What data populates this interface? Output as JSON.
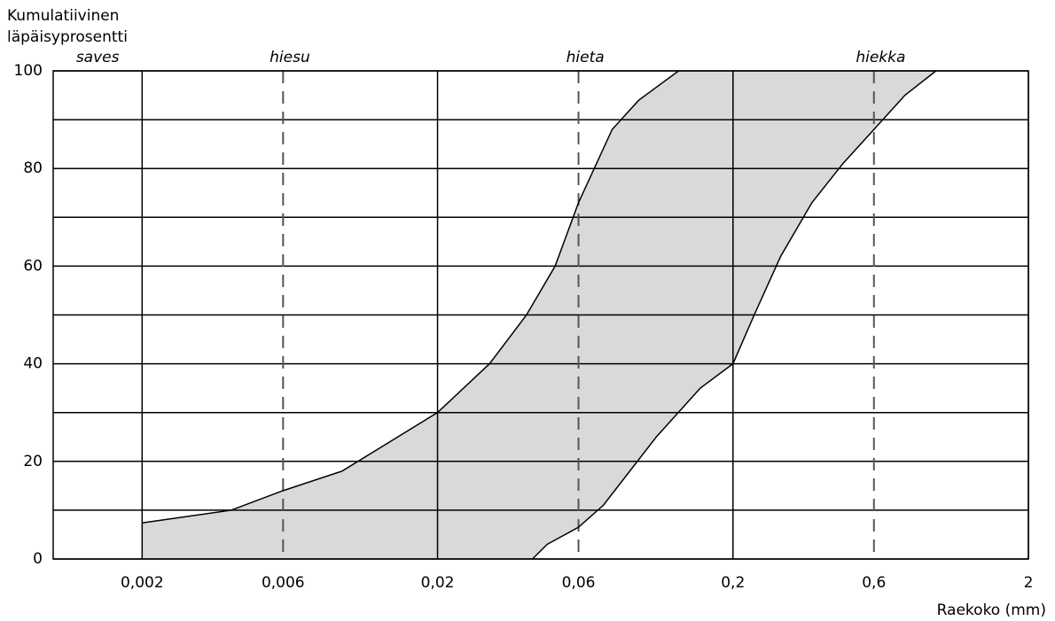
{
  "chart_data": {
    "type": "band",
    "ylabel": [
      "Kumulatiivinen",
      "läpäisyprosentti"
    ],
    "xlabel": "Raekoko (mm)",
    "xscale": "log",
    "xlim": [
      0.001,
      2
    ],
    "ylim": [
      0,
      100
    ],
    "xticks": [
      {
        "value": 0.002,
        "label": "0,002"
      },
      {
        "value": 0.006,
        "label": "0,006"
      },
      {
        "value": 0.02,
        "label": "0,02"
      },
      {
        "value": 0.06,
        "label": "0,06"
      },
      {
        "value": 0.2,
        "label": "0,2"
      },
      {
        "value": 0.6,
        "label": "0,6"
      },
      2
    ],
    "x_grid_dashes": [
      false,
      true,
      false,
      true,
      false,
      true,
      false
    ],
    "yticks": [
      0,
      20,
      40,
      60,
      80,
      100
    ],
    "yminor": [
      10,
      30,
      50,
      70,
      90
    ],
    "zones": [
      {
        "label": "saves",
        "from": 0.001,
        "to": 0.002
      },
      {
        "label": "hiesu",
        "from": 0.002,
        "to": 0.02
      },
      {
        "label": "hieta",
        "from": 0.02,
        "to": 0.2
      },
      {
        "label": "hiekka",
        "from": 0.2,
        "to": 2
      }
    ],
    "fill_color": "#d9d9d9",
    "series": [
      {
        "color": "#000000",
        "x": [
          0.002,
          0.004,
          0.006,
          0.0095,
          0.02,
          0.03,
          0.04,
          0.05,
          0.06,
          0.078,
          0.096,
          0.131
        ],
        "values": [
          7.4,
          10,
          14,
          18,
          30,
          40,
          50,
          60,
          73,
          88,
          94,
          100
        ]
      },
      {
        "color": "#000000",
        "x": [
          0.0419,
          0.047,
          0.06,
          0.0728,
          0.11,
          0.155,
          0.2,
          0.236,
          0.29,
          0.37,
          0.471,
          0.6,
          0.764,
          0.973
        ],
        "values": [
          0,
          3,
          6.5,
          11,
          25,
          35,
          40,
          50,
          62,
          73,
          81,
          88,
          95,
          100
        ]
      }
    ]
  }
}
